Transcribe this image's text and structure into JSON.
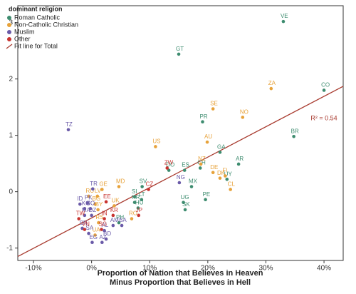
{
  "chart_data": {
    "type": "scatter",
    "xlabel": [
      "Proportion of Nation that Believes in Heaven",
      "Minus Proportion that Believes in Hell"
    ],
    "legend_title": "dominant religion",
    "legend_position": "upper left",
    "xlim": [
      -12.7,
      43.3
    ],
    "ylim": [
      -1.22,
      3.3
    ],
    "xticks": [
      {
        "value": -10,
        "label": "-10%"
      },
      {
        "value": 0,
        "label": "0%"
      },
      {
        "value": 10,
        "label": "10%"
      },
      {
        "value": 20,
        "label": "20%"
      },
      {
        "value": 30,
        "label": "30%"
      },
      {
        "value": 40,
        "label": "40%"
      }
    ],
    "yticks": [
      -1,
      0,
      1,
      2,
      3
    ],
    "series": [
      {
        "name": "Roman Catholic",
        "color": "#3d8c6f",
        "labels": [
          "VE",
          "GT",
          "CO",
          "PR",
          "BR",
          "GA",
          "AR",
          "CH",
          "DO",
          "ES",
          "UY",
          "MX",
          "SV",
          "PE",
          "UG",
          "SK",
          "SI",
          "LT",
          "HR",
          "HU",
          "PH"
        ],
        "x": [
          33.0,
          15.0,
          40.0,
          19.1,
          34.8,
          22.1,
          25.3,
          18.7,
          13.3,
          16.0,
          23.3,
          17.2,
          8.7,
          19.6,
          15.8,
          16.1,
          7.4,
          8.6,
          7.4,
          8.0,
          4.7
        ],
        "values": [
          3.02,
          2.44,
          1.8,
          1.24,
          0.98,
          0.7,
          0.49,
          0.42,
          0.38,
          0.38,
          0.22,
          0.09,
          0.09,
          -0.14,
          -0.19,
          -0.32,
          -0.09,
          -0.14,
          -0.19,
          -0.29,
          -0.55
        ]
      },
      {
        "name": "Non-Catholic Christian",
        "color": "#e7a23a",
        "labels": [
          "ZA",
          "SE",
          "NO",
          "AU",
          "US",
          "NZ",
          "DE",
          "FI",
          "DK",
          "CL",
          "MD",
          "GE",
          "LV",
          "RU",
          "BG",
          "BY",
          "UK",
          "RS",
          "UA",
          "RO"
        ],
        "x": [
          30.9,
          20.9,
          26.0,
          19.9,
          11.0,
          18.8,
          20.9,
          23.0,
          22.1,
          23.9,
          4.7,
          1.8,
          1.0,
          -0.5,
          0.6,
          1.1,
          3.9,
          1.2,
          0.6,
          6.9
        ],
        "values": [
          1.83,
          1.47,
          1.32,
          0.88,
          0.8,
          0.49,
          0.34,
          0.28,
          0.24,
          0.04,
          0.09,
          0.04,
          -0.08,
          -0.08,
          -0.22,
          -0.32,
          -0.25,
          -0.55,
          -0.77,
          -0.48
        ]
      },
      {
        "name": "Muslim",
        "color": "#6a5aa8",
        "labels": [
          "TZ",
          "NG",
          "TR",
          "ID",
          "PK",
          "KG",
          "JO",
          "MA",
          "DZ",
          "SN",
          "SA",
          "EG",
          "AZ",
          "BD",
          "AL",
          "AM",
          "BA"
        ],
        "x": [
          -4.0,
          15.1,
          0.2,
          -2.0,
          -0.7,
          -1.2,
          -0.2,
          -1.2,
          0.0,
          -1.6,
          -0.5,
          0.1,
          1.8,
          2.5,
          2.2,
          3.7,
          5.2
        ],
        "values": [
          1.1,
          0.16,
          0.05,
          -0.22,
          -0.2,
          -0.3,
          -0.3,
          -0.42,
          -0.42,
          -0.65,
          -0.74,
          -0.9,
          -0.9,
          -0.84,
          -0.69,
          -0.6,
          -0.6
        ]
      },
      {
        "name": "Other",
        "color": "#c8332f",
        "labels": [
          "ZW",
          "CZ",
          "EE",
          "KR",
          "IN",
          "JP",
          "TW",
          "VN",
          "SG"
        ],
        "x": [
          13.0,
          9.8,
          2.5,
          3.7,
          2.2,
          8.1,
          -2.2,
          -1.2,
          1.7
        ],
        "values": [
          0.42,
          0.04,
          -0.18,
          -0.42,
          -0.48,
          -0.42,
          -0.48,
          -0.67,
          -0.67
        ]
      }
    ],
    "fit_line": {
      "name": "Fit line for Total",
      "color": "#a83a2e",
      "x": [
        -12.7,
        43.3
      ],
      "values": [
        -1.15,
        1.87
      ]
    },
    "annotation": "R² = 0.54"
  }
}
